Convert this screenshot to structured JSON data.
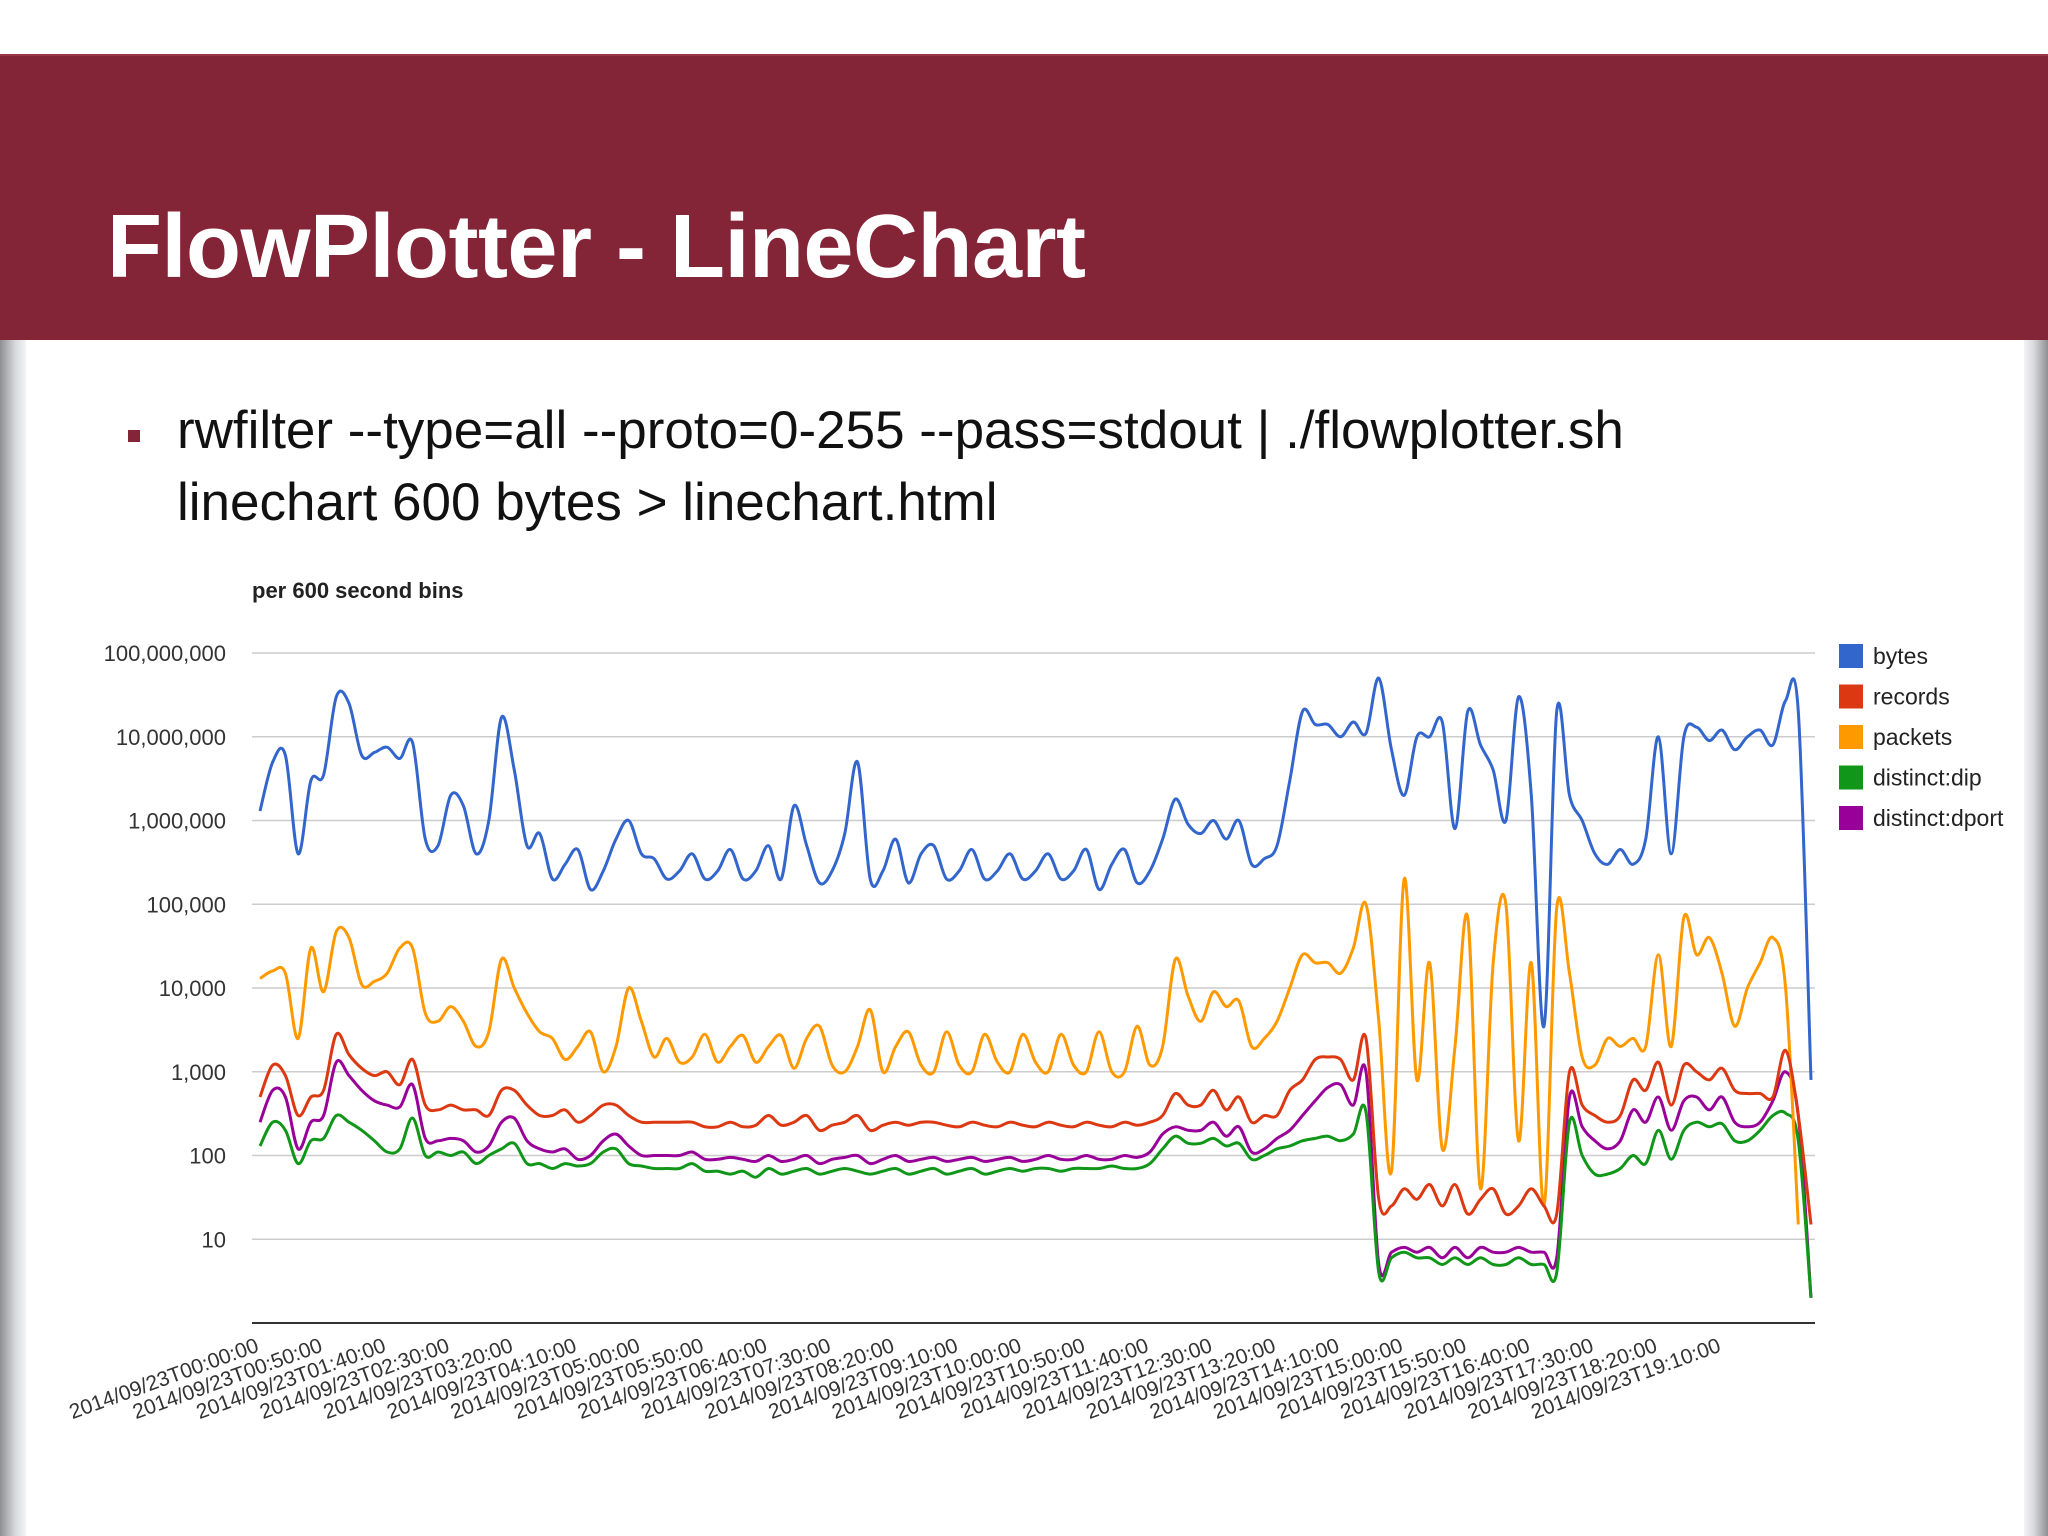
{
  "slide": {
    "title": "FlowPlotter - LineChart",
    "bullet_line_1": "rwfilter --type=all --proto=0-255 --pass=stdout | ./flowplotter.sh",
    "bullet_line_2": "linechart 600 bytes > linechart.html",
    "colors": {
      "title_bar": "#842437",
      "title_text": "#ffffff"
    }
  },
  "chart_data": {
    "type": "line",
    "title": "per 600 second bins",
    "y_scale": "log",
    "ylim": [
      1,
      100000000
    ],
    "yticks": [
      {
        "value": 10,
        "label": "10"
      },
      {
        "value": 100,
        "label": "100"
      },
      {
        "value": 1000,
        "label": "1,000"
      },
      {
        "value": 10000,
        "label": "10,000"
      },
      {
        "value": 100000,
        "label": "100,000"
      },
      {
        "value": 1000000,
        "label": "1,000,000"
      },
      {
        "value": 10000000,
        "label": "10,000,000"
      },
      {
        "value": 100000000,
        "label": "100,000,000"
      }
    ],
    "x_tick_labels": [
      "2014/09/23T00:00:00",
      "2014/09/23T00:50:00",
      "2014/09/23T01:40:00",
      "2014/09/23T02:30:00",
      "2014/09/23T03:20:00",
      "2014/09/23T04:10:00",
      "2014/09/23T05:00:00",
      "2014/09/23T05:50:00",
      "2014/09/23T06:40:00",
      "2014/09/23T07:30:00",
      "2014/09/23T08:20:00",
      "2014/09/23T09:10:00",
      "2014/09/23T10:00:00",
      "2014/09/23T10:50:00",
      "2014/09/23T11:40:00",
      "2014/09/23T12:30:00",
      "2014/09/23T13:20:00",
      "2014/09/23T14:10:00",
      "2014/09/23T15:00:00",
      "2014/09/23T15:50:00",
      "2014/09/23T16:40:00",
      "2014/09/23T17:30:00",
      "2014/09/23T18:20:00",
      "2014/09/23T19:10:00"
    ],
    "x_start": "2014/09/23T00:00:00",
    "bin_minutes": 10,
    "grid": true,
    "legend_position": "right",
    "series": [
      {
        "name": "bytes",
        "color": "#3366cc",
        "values": [
          1300000,
          5000000,
          6000000,
          400000,
          3000000,
          3500000,
          30000000,
          25000000,
          6000000,
          6500000,
          7500000,
          5500000,
          8500000,
          600000,
          500000,
          2000000,
          1500000,
          400000,
          1000000,
          17000000,
          4000000,
          500000,
          700000,
          200000,
          300000,
          450000,
          150000,
          250000,
          600000,
          1000000,
          400000,
          350000,
          200000,
          250000,
          400000,
          200000,
          250000,
          450000,
          200000,
          250000,
          500000,
          200000,
          1500000,
          500000,
          180000,
          250000,
          700000,
          5000000,
          200000,
          250000,
          600000,
          180000,
          400000,
          500000,
          200000,
          250000,
          450000,
          200000,
          250000,
          400000,
          200000,
          250000,
          400000,
          200000,
          250000,
          450000,
          150000,
          300000,
          450000,
          180000,
          250000,
          600000,
          1800000,
          900000,
          700000,
          1000000,
          600000,
          1000000,
          300000,
          350000,
          500000,
          3000000,
          20000000,
          14000000,
          14000000,
          10000000,
          15000000,
          11000000,
          50000000,
          7000000,
          2000000,
          10000000,
          10000000,
          15000000,
          800000,
          20000000,
          8000000,
          4000000,
          1000000,
          30000000,
          2000000,
          3500,
          20000000,
          2000000,
          1000000,
          400000,
          300000,
          450000,
          300000,
          600000,
          10000000,
          400000,
          10000000,
          13000000,
          9000000,
          12000000,
          7000000,
          10000000,
          12000000,
          8000000,
          27000000,
          20000000,
          800
        ]
      },
      {
        "name": "records",
        "color": "#dc3912",
        "values": [
          500,
          1200,
          900,
          300,
          500,
          600,
          2800,
          1600,
          1100,
          900,
          1000,
          700,
          1400,
          400,
          350,
          400,
          350,
          350,
          300,
          600,
          600,
          400,
          300,
          300,
          350,
          250,
          300,
          400,
          400,
          300,
          250,
          250,
          250,
          250,
          250,
          220,
          220,
          250,
          220,
          230,
          300,
          230,
          250,
          300,
          200,
          230,
          250,
          300,
          200,
          230,
          250,
          230,
          250,
          250,
          230,
          220,
          250,
          230,
          220,
          250,
          230,
          220,
          250,
          230,
          220,
          250,
          230,
          220,
          250,
          230,
          250,
          300,
          550,
          400,
          400,
          600,
          350,
          500,
          250,
          300,
          300,
          600,
          800,
          1400,
          1500,
          1400,
          800,
          2500,
          30,
          25,
          40,
          30,
          45,
          25,
          45,
          20,
          30,
          40,
          20,
          25,
          40,
          25,
          20,
          1000,
          400,
          300,
          250,
          300,
          800,
          600,
          1300,
          400,
          1200,
          1000,
          800,
          1100,
          600,
          550,
          550,
          500,
          1800,
          300,
          15
        ]
      },
      {
        "name": "packets",
        "color": "#ff9900",
        "values": [
          13000,
          16000,
          15000,
          2500,
          30000,
          9000,
          47000,
          40000,
          11000,
          12000,
          15000,
          30000,
          30000,
          5000,
          4000,
          6000,
          4000,
          2000,
          3000,
          22000,
          10000,
          5000,
          3000,
          2500,
          1400,
          2000,
          3000,
          1000,
          2000,
          10000,
          4000,
          1500,
          2500,
          1300,
          1500,
          2800,
          1300,
          2000,
          2700,
          1300,
          2000,
          2700,
          1100,
          2500,
          3500,
          1200,
          1000,
          2000,
          5500,
          1000,
          2000,
          3000,
          1200,
          1000,
          3000,
          1200,
          1000,
          2800,
          1300,
          1000,
          2800,
          1300,
          1000,
          2800,
          1200,
          1000,
          3000,
          1000,
          1000,
          3500,
          1200,
          2000,
          22000,
          8000,
          4000,
          9000,
          6000,
          7000,
          2000,
          2500,
          4000,
          10000,
          25000,
          20000,
          20000,
          15000,
          30000,
          100000,
          4000,
          65,
          200000,
          800,
          20000,
          120,
          2000,
          70000,
          40,
          20000,
          100000,
          150,
          20000,
          25,
          90000,
          15000,
          1500,
          1200,
          2500,
          2000,
          2500,
          2000,
          25000,
          2000,
          70000,
          25000,
          40000,
          15000,
          3500,
          10000,
          20000,
          40000,
          10000,
          15
        ]
      },
      {
        "name": "distinct:dip",
        "color": "#109618",
        "values": [
          130,
          250,
          200,
          80,
          150,
          160,
          300,
          250,
          200,
          150,
          110,
          120,
          280,
          100,
          110,
          100,
          110,
          80,
          100,
          120,
          140,
          80,
          80,
          70,
          80,
          75,
          80,
          110,
          120,
          80,
          75,
          70,
          70,
          70,
          80,
          65,
          65,
          60,
          65,
          55,
          70,
          60,
          65,
          70,
          60,
          65,
          70,
          65,
          60,
          65,
          70,
          60,
          65,
          70,
          60,
          65,
          70,
          60,
          65,
          70,
          65,
          70,
          70,
          65,
          70,
          70,
          70,
          75,
          70,
          70,
          80,
          120,
          170,
          140,
          140,
          160,
          130,
          140,
          90,
          100,
          120,
          130,
          150,
          160,
          170,
          150,
          180,
          330,
          4,
          6,
          7,
          6,
          6,
          5,
          6,
          5,
          6,
          5,
          5,
          6,
          5,
          5,
          4,
          250,
          100,
          60,
          60,
          70,
          100,
          80,
          200,
          90,
          200,
          250,
          220,
          240,
          150,
          150,
          200,
          300,
          320,
          150,
          2
        ]
      },
      {
        "name": "distinct:dport",
        "color": "#990099",
        "values": [
          250,
          600,
          500,
          120,
          250,
          300,
          1300,
          900,
          600,
          450,
          400,
          380,
          700,
          160,
          150,
          160,
          150,
          110,
          130,
          250,
          280,
          150,
          120,
          110,
          120,
          90,
          100,
          150,
          180,
          130,
          100,
          100,
          100,
          100,
          110,
          90,
          90,
          95,
          90,
          85,
          100,
          85,
          90,
          100,
          80,
          90,
          95,
          100,
          80,
          90,
          100,
          85,
          90,
          95,
          85,
          90,
          95,
          85,
          90,
          95,
          85,
          90,
          100,
          90,
          90,
          100,
          90,
          90,
          100,
          95,
          110,
          180,
          220,
          200,
          200,
          250,
          170,
          220,
          110,
          120,
          160,
          200,
          300,
          450,
          650,
          700,
          400,
          1000,
          5,
          7,
          8,
          7,
          8,
          6,
          8,
          6,
          8,
          7,
          7,
          8,
          7,
          7,
          6,
          500,
          220,
          150,
          120,
          150,
          350,
          250,
          500,
          200,
          450,
          500,
          350,
          500,
          250,
          220,
          250,
          450,
          1000,
          300,
          2
        ]
      }
    ]
  }
}
